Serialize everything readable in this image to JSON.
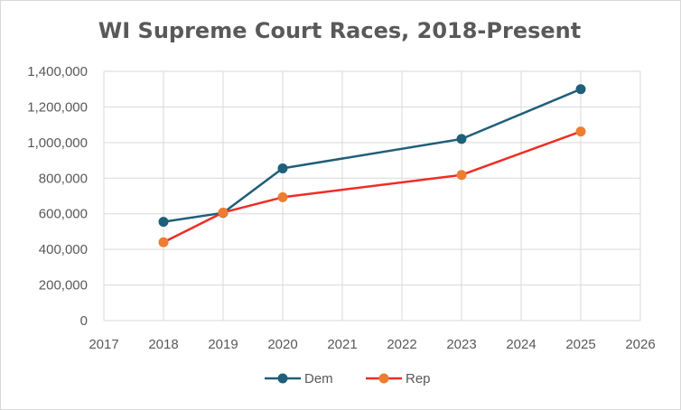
{
  "chart_data": {
    "type": "scatter",
    "title": "WI Supreme Court Races, 2018-Present",
    "xlabel": "",
    "ylabel": "",
    "xlim": [
      2017,
      2026
    ],
    "ylim": [
      0,
      1400000
    ],
    "x_ticks": [
      "2017",
      "2018",
      "2019",
      "2020",
      "2021",
      "2022",
      "2023",
      "2024",
      "2025",
      "2026"
    ],
    "y_ticks": [
      "0",
      "200,000",
      "400,000",
      "600,000",
      "800,000",
      "1,000,000",
      "1,200,000",
      "1,400,000"
    ],
    "grid": "vertical and horizontal",
    "legend_position": "bottom",
    "series": [
      {
        "name": "Dem",
        "color": "#1f5f7a",
        "x": [
          2018,
          2019,
          2020,
          2023,
          2025
        ],
        "y": [
          555000,
          605000,
          855000,
          1020000,
          1300000
        ]
      },
      {
        "name": "Rep",
        "color": "#ee2d24",
        "marker_color": "#ed7d31",
        "x": [
          2018,
          2019,
          2020,
          2023,
          2025
        ],
        "y": [
          440000,
          607000,
          693000,
          818000,
          1062000
        ]
      }
    ]
  }
}
